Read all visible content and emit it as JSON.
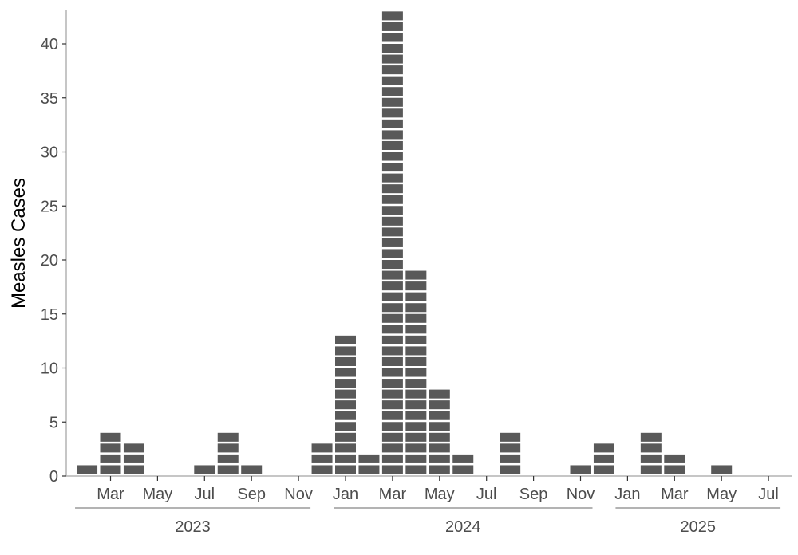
{
  "chart_data": {
    "type": "bar",
    "style": "stacked unit blocks (one block per case)",
    "ylabel": "Measles Cases",
    "xlabel": "",
    "ylim": [
      0,
      43
    ],
    "yticks": [
      0,
      5,
      10,
      15,
      20,
      25,
      30,
      35,
      40
    ],
    "grid": false,
    "bar_color": "#595959",
    "axis_color": "#b3b3b3",
    "x": [
      "2023-02",
      "2023-03",
      "2023-04",
      "2023-05",
      "2023-06",
      "2023-07",
      "2023-08",
      "2023-09",
      "2023-10",
      "2023-11",
      "2023-12",
      "2024-01",
      "2024-02",
      "2024-03",
      "2024-04",
      "2024-05",
      "2024-06",
      "2024-07",
      "2024-08",
      "2024-09",
      "2024-10",
      "2024-11",
      "2024-12",
      "2025-01",
      "2025-02",
      "2025-03",
      "2025-04",
      "2025-05",
      "2025-06",
      "2025-07"
    ],
    "values": [
      1,
      4,
      3,
      0,
      0,
      1,
      4,
      1,
      0,
      0,
      3,
      13,
      2,
      43,
      19,
      8,
      2,
      0,
      4,
      0,
      0,
      1,
      3,
      0,
      4,
      2,
      0,
      1,
      0,
      0
    ],
    "month_ticks": [
      {
        "month": "2023-03",
        "label": "Mar"
      },
      {
        "month": "2023-05",
        "label": "May"
      },
      {
        "month": "2023-07",
        "label": "Jul"
      },
      {
        "month": "2023-09",
        "label": "Sep"
      },
      {
        "month": "2023-11",
        "label": "Nov"
      },
      {
        "month": "2024-01",
        "label": "Jan"
      },
      {
        "month": "2024-03",
        "label": "Mar"
      },
      {
        "month": "2024-05",
        "label": "May"
      },
      {
        "month": "2024-07",
        "label": "Jul"
      },
      {
        "month": "2024-09",
        "label": "Sep"
      },
      {
        "month": "2024-11",
        "label": "Nov"
      },
      {
        "month": "2025-01",
        "label": "Jan"
      },
      {
        "month": "2025-03",
        "label": "Mar"
      },
      {
        "month": "2025-05",
        "label": "May"
      },
      {
        "month": "2025-07",
        "label": "Jul"
      }
    ],
    "year_groups": [
      {
        "label": "2023",
        "start": "2023-02",
        "end": "2023-11"
      },
      {
        "label": "2024",
        "start": "2024-01",
        "end": "2024-11"
      },
      {
        "label": "2025",
        "start": "2025-01",
        "end": "2025-07"
      }
    ]
  }
}
